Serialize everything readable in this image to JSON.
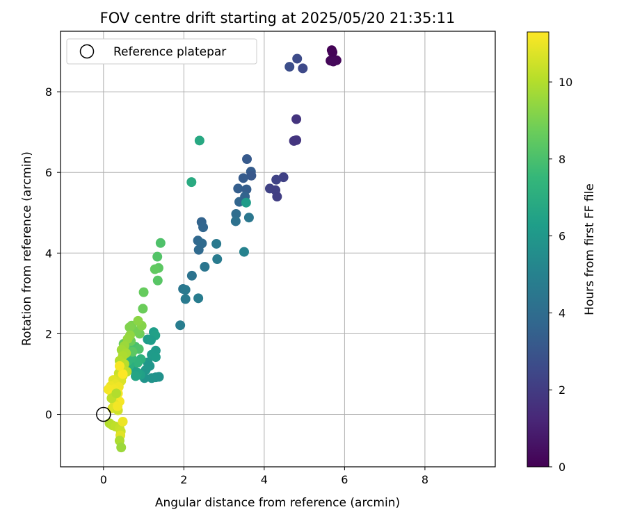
{
  "chart_data": {
    "type": "scatter",
    "title": "FOV centre drift starting at 2025/05/20 21:35:11",
    "xlabel": "Angular distance from reference (arcmin)",
    "ylabel": "Rotation from reference (arcmin)",
    "xlim": [
      -1.07,
      9.75
    ],
    "ylim": [
      -1.3,
      9.5
    ],
    "xticks": [
      0,
      2,
      4,
      6,
      8
    ],
    "yticks": [
      0,
      2,
      4,
      6,
      8
    ],
    "grid": true,
    "legend": {
      "placement": "top-left",
      "entries": [
        {
          "label": "Reference platepar",
          "marker": "open-circle"
        }
      ]
    },
    "reference_point": {
      "x": 0,
      "y": 0
    },
    "colorbar": {
      "label": "Hours from first FF file",
      "colormap": "viridis",
      "range": [
        0,
        11.3
      ],
      "ticks": [
        0,
        2,
        4,
        6,
        8,
        10
      ]
    },
    "colormap_stops": [
      "#440154",
      "#482878",
      "#3e4989",
      "#31688e",
      "#26828e",
      "#1f9e89",
      "#35b779",
      "#6ece58",
      "#b5de2b",
      "#fde725"
    ],
    "points": [
      {
        "x": 5.68,
        "y": 9.03,
        "t": 0.05
      },
      {
        "x": 5.7,
        "y": 8.98,
        "t": 0.1
      },
      {
        "x": 5.65,
        "y": 8.77,
        "t": 0.15
      },
      {
        "x": 5.8,
        "y": 8.78,
        "t": 0.2
      },
      {
        "x": 5.72,
        "y": 8.75,
        "t": 0.25
      },
      {
        "x": 4.82,
        "y": 8.82,
        "t": 2.6
      },
      {
        "x": 4.63,
        "y": 8.62,
        "t": 2.7
      },
      {
        "x": 4.96,
        "y": 8.58,
        "t": 2.5
      },
      {
        "x": 4.8,
        "y": 7.32,
        "t": 1.7
      },
      {
        "x": 4.74,
        "y": 6.78,
        "t": 1.8
      },
      {
        "x": 4.8,
        "y": 6.8,
        "t": 1.75
      },
      {
        "x": 4.48,
        "y": 5.88,
        "t": 2.2
      },
      {
        "x": 4.3,
        "y": 5.82,
        "t": 2.3
      },
      {
        "x": 4.14,
        "y": 5.6,
        "t": 2.25
      },
      {
        "x": 4.28,
        "y": 5.56,
        "t": 2.15
      },
      {
        "x": 4.32,
        "y": 5.4,
        "t": 2.1
      },
      {
        "x": 3.57,
        "y": 6.33,
        "t": 3.2
      },
      {
        "x": 3.67,
        "y": 6.02,
        "t": 3.3
      },
      {
        "x": 3.68,
        "y": 5.92,
        "t": 3.1
      },
      {
        "x": 3.48,
        "y": 5.86,
        "t": 3.25
      },
      {
        "x": 3.35,
        "y": 5.6,
        "t": 3.4
      },
      {
        "x": 3.56,
        "y": 5.58,
        "t": 3.35
      },
      {
        "x": 3.52,
        "y": 5.4,
        "t": 3.6
      },
      {
        "x": 3.38,
        "y": 5.27,
        "t": 3.7
      },
      {
        "x": 3.55,
        "y": 5.25,
        "t": 6.2
      },
      {
        "x": 3.3,
        "y": 4.97,
        "t": 4.0
      },
      {
        "x": 3.62,
        "y": 4.88,
        "t": 4.5
      },
      {
        "x": 3.29,
        "y": 4.79,
        "t": 4.2
      },
      {
        "x": 3.5,
        "y": 4.03,
        "t": 5.0
      },
      {
        "x": 2.44,
        "y": 4.77,
        "t": 3.6
      },
      {
        "x": 2.48,
        "y": 4.64,
        "t": 3.7
      },
      {
        "x": 2.35,
        "y": 4.31,
        "t": 3.8
      },
      {
        "x": 2.45,
        "y": 4.24,
        "t": 3.9
      },
      {
        "x": 2.37,
        "y": 4.08,
        "t": 3.85
      },
      {
        "x": 2.81,
        "y": 4.23,
        "t": 4.6
      },
      {
        "x": 2.83,
        "y": 3.85,
        "t": 4.7
      },
      {
        "x": 2.52,
        "y": 3.66,
        "t": 4.4
      },
      {
        "x": 2.2,
        "y": 3.44,
        "t": 4.3
      },
      {
        "x": 1.98,
        "y": 3.11,
        "t": 4.4
      },
      {
        "x": 2.04,
        "y": 3.09,
        "t": 4.6
      },
      {
        "x": 2.04,
        "y": 2.86,
        "t": 4.65
      },
      {
        "x": 2.36,
        "y": 2.88,
        "t": 4.75
      },
      {
        "x": 1.91,
        "y": 2.21,
        "t": 4.8
      },
      {
        "x": 2.39,
        "y": 6.79,
        "t": 6.8
      },
      {
        "x": 2.19,
        "y": 5.76,
        "t": 6.9
      },
      {
        "x": 1.42,
        "y": 4.25,
        "t": 8.1
      },
      {
        "x": 1.34,
        "y": 3.91,
        "t": 8.2
      },
      {
        "x": 1.37,
        "y": 3.63,
        "t": 8.4
      },
      {
        "x": 1.28,
        "y": 3.6,
        "t": 8.5
      },
      {
        "x": 1.35,
        "y": 3.32,
        "t": 8.3
      },
      {
        "x": 1.0,
        "y": 3.03,
        "t": 8.6
      },
      {
        "x": 0.98,
        "y": 2.62,
        "t": 8.7
      },
      {
        "x": 1.25,
        "y": 2.04,
        "t": 6.3
      },
      {
        "x": 1.29,
        "y": 1.96,
        "t": 6.4
      },
      {
        "x": 1.1,
        "y": 1.86,
        "t": 6.2
      },
      {
        "x": 1.18,
        "y": 1.84,
        "t": 6.25
      },
      {
        "x": 1.3,
        "y": 1.58,
        "t": 6.1
      },
      {
        "x": 1.2,
        "y": 1.48,
        "t": 6.15
      },
      {
        "x": 1.3,
        "y": 1.42,
        "t": 6.2
      },
      {
        "x": 1.1,
        "y": 1.29,
        "t": 6.0
      },
      {
        "x": 1.15,
        "y": 1.2,
        "t": 5.9
      },
      {
        "x": 1.05,
        "y": 1.1,
        "t": 5.95
      },
      {
        "x": 1.38,
        "y": 0.93,
        "t": 5.7
      },
      {
        "x": 1.3,
        "y": 0.92,
        "t": 5.75
      },
      {
        "x": 1.2,
        "y": 0.9,
        "t": 5.8
      },
      {
        "x": 1.02,
        "y": 0.9,
        "t": 5.85
      },
      {
        "x": 0.92,
        "y": 0.98,
        "t": 6.4
      },
      {
        "x": 0.85,
        "y": 1.03,
        "t": 6.5
      },
      {
        "x": 0.75,
        "y": 1.1,
        "t": 6.45
      },
      {
        "x": 0.8,
        "y": 0.95,
        "t": 6.6
      },
      {
        "x": 0.93,
        "y": 1.37,
        "t": 7.2
      },
      {
        "x": 0.85,
        "y": 1.28,
        "t": 7.3
      },
      {
        "x": 0.65,
        "y": 1.22,
        "t": 7.1
      },
      {
        "x": 0.6,
        "y": 1.32,
        "t": 7.5
      },
      {
        "x": 0.7,
        "y": 1.4,
        "t": 7.4
      },
      {
        "x": 0.55,
        "y": 1.5,
        "t": 7.7
      },
      {
        "x": 0.62,
        "y": 1.61,
        "t": 8.2
      },
      {
        "x": 0.79,
        "y": 1.68,
        "t": 8.0
      },
      {
        "x": 0.88,
        "y": 1.62,
        "t": 8.1
      },
      {
        "x": 0.72,
        "y": 1.55,
        "t": 8.4
      },
      {
        "x": 0.5,
        "y": 1.75,
        "t": 8.6
      },
      {
        "x": 0.68,
        "y": 1.82,
        "t": 8.7
      },
      {
        "x": 0.9,
        "y": 2.0,
        "t": 8.8
      },
      {
        "x": 0.82,
        "y": 2.06,
        "t": 8.9
      },
      {
        "x": 0.7,
        "y": 2.2,
        "t": 9.0
      },
      {
        "x": 0.65,
        "y": 2.16,
        "t": 9.1
      },
      {
        "x": 0.95,
        "y": 2.2,
        "t": 9.2
      },
      {
        "x": 0.86,
        "y": 2.32,
        "t": 9.3
      },
      {
        "x": 0.66,
        "y": 1.96,
        "t": 9.4
      },
      {
        "x": 0.6,
        "y": 1.87,
        "t": 9.5
      },
      {
        "x": 0.52,
        "y": 1.7,
        "t": 9.6
      },
      {
        "x": 0.45,
        "y": 1.6,
        "t": 9.7
      },
      {
        "x": 0.56,
        "y": 1.52,
        "t": 9.8
      },
      {
        "x": 0.48,
        "y": 1.45,
        "t": 9.9
      },
      {
        "x": 0.4,
        "y": 1.33,
        "t": 10.0
      },
      {
        "x": 0.52,
        "y": 1.25,
        "t": 10.1
      },
      {
        "x": 0.58,
        "y": 1.06,
        "t": 10.2
      },
      {
        "x": 0.44,
        "y": 1.14,
        "t": 10.3
      },
      {
        "x": 0.38,
        "y": 1.02,
        "t": 10.4
      },
      {
        "x": 0.48,
        "y": 0.96,
        "t": 10.5
      },
      {
        "x": 0.34,
        "y": 0.88,
        "t": 10.6
      },
      {
        "x": 0.44,
        "y": 0.83,
        "t": 10.7
      },
      {
        "x": 0.24,
        "y": 0.85,
        "t": 10.8
      },
      {
        "x": 0.3,
        "y": 0.75,
        "t": 10.9
      },
      {
        "x": 0.18,
        "y": 0.7,
        "t": 11.0
      },
      {
        "x": 0.38,
        "y": 0.68,
        "t": 11.05
      },
      {
        "x": 0.26,
        "y": 0.62,
        "t": 11.1
      },
      {
        "x": 0.12,
        "y": 0.62,
        "t": 11.15
      },
      {
        "x": 0.36,
        "y": 0.52,
        "t": 11.2
      },
      {
        "x": 0.22,
        "y": 0.48,
        "t": 11.25
      },
      {
        "x": 0.3,
        "y": 0.4,
        "t": 11.3
      },
      {
        "x": 0.4,
        "y": 0.32,
        "t": 11.2
      },
      {
        "x": 0.28,
        "y": 0.25,
        "t": 10.9
      },
      {
        "x": 0.22,
        "y": 0.15,
        "t": 10.7
      },
      {
        "x": 0.36,
        "y": 0.1,
        "t": 10.5
      },
      {
        "x": 0.2,
        "y": 0.4,
        "t": 10.2
      },
      {
        "x": 0.32,
        "y": 0.52,
        "t": 10.0
      },
      {
        "x": 0.48,
        "y": 1.0,
        "t": 11.3
      },
      {
        "x": 0.4,
        "y": 1.2,
        "t": 11.2
      },
      {
        "x": 0.35,
        "y": 0.2,
        "t": 11.1
      },
      {
        "x": 0.15,
        "y": -0.22,
        "t": 10.0
      },
      {
        "x": 0.22,
        "y": -0.27,
        "t": 10.1
      },
      {
        "x": 0.3,
        "y": -0.3,
        "t": 10.2
      },
      {
        "x": 0.4,
        "y": -0.35,
        "t": 10.3
      },
      {
        "x": 0.48,
        "y": -0.18,
        "t": 11.0
      },
      {
        "x": 0.43,
        "y": -0.42,
        "t": 10.4
      },
      {
        "x": 0.42,
        "y": -0.52,
        "t": 10.8
      },
      {
        "x": 0.4,
        "y": -0.65,
        "t": 9.9
      },
      {
        "x": 0.44,
        "y": -0.82,
        "t": 9.6
      }
    ]
  }
}
